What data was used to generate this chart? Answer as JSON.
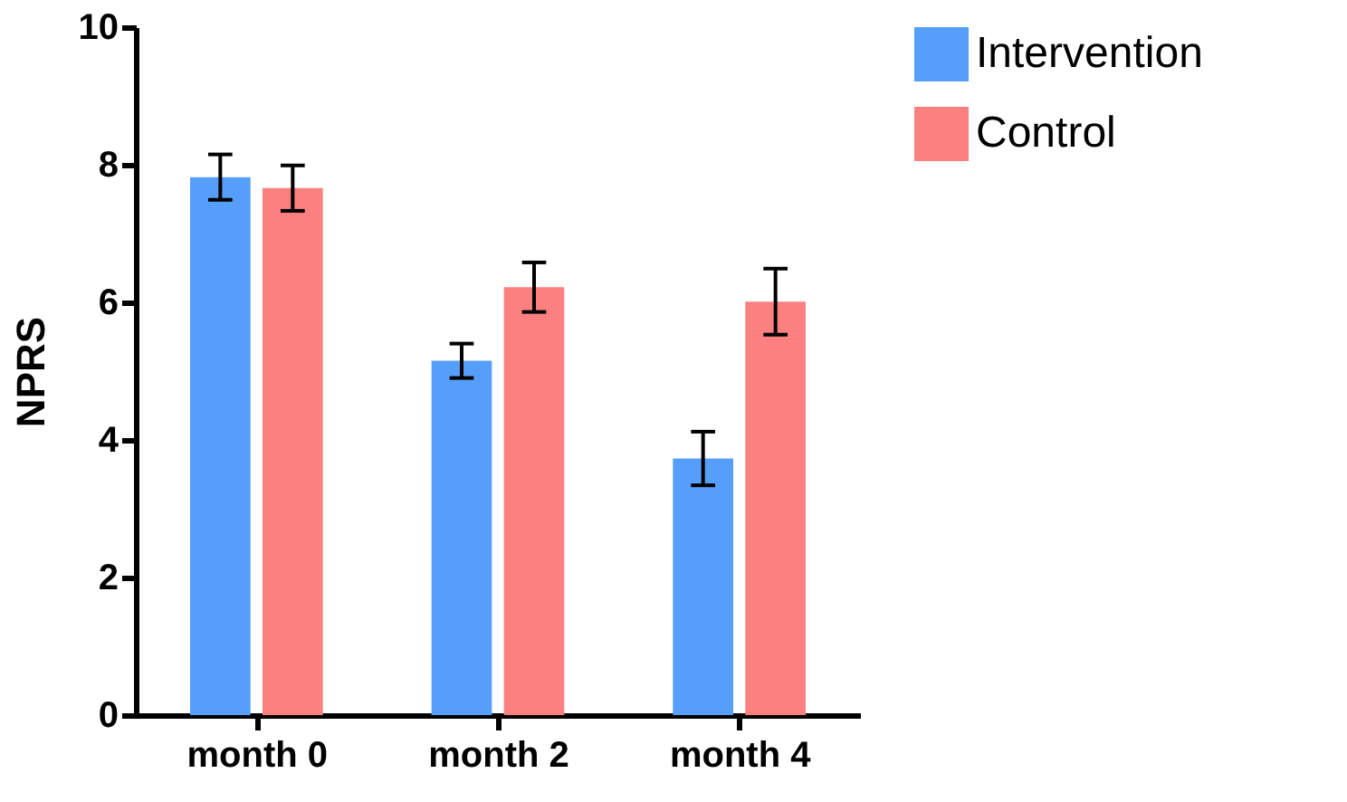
{
  "chart_data": {
    "type": "bar",
    "ylabel": "NPRS",
    "categories": [
      "month 0",
      "month 2",
      "month 4"
    ],
    "series": [
      {
        "name": "Intervention",
        "color": "#559ffa",
        "values": [
          7.82,
          5.15,
          3.73
        ],
        "errors": [
          0.33,
          0.25,
          0.39
        ]
      },
      {
        "name": "Control",
        "color": "#fd8080",
        "values": [
          7.66,
          6.22,
          6.01
        ],
        "errors": [
          0.33,
          0.36,
          0.48
        ]
      }
    ],
    "ylim": [
      0,
      10
    ],
    "yticks": [
      0,
      2,
      4,
      6,
      8,
      10
    ],
    "grid": false,
    "legend": "top right"
  }
}
